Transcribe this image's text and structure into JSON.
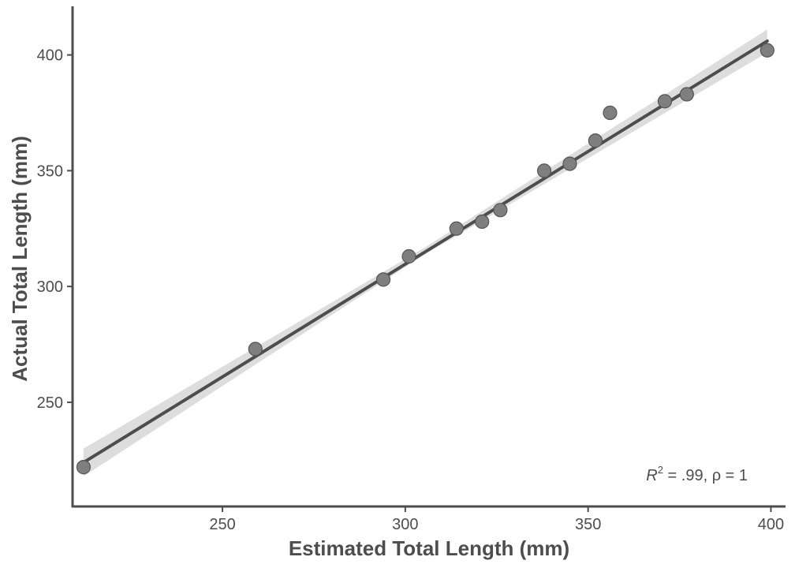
{
  "chart_data": {
    "type": "scatter",
    "xlabel": "Estimated Total Length (mm)",
    "ylabel": "Actual Total Length (mm)",
    "xlim": [
      209,
      404
    ],
    "ylim": [
      205,
      421
    ],
    "x_ticks": [
      250,
      300,
      350,
      400
    ],
    "y_ticks": [
      250,
      300,
      350,
      400
    ],
    "grid": false,
    "points": [
      {
        "x": 212,
        "y": 222
      },
      {
        "x": 259,
        "y": 273
      },
      {
        "x": 294,
        "y": 303
      },
      {
        "x": 301,
        "y": 313
      },
      {
        "x": 314,
        "y": 325
      },
      {
        "x": 321,
        "y": 328
      },
      {
        "x": 326,
        "y": 333
      },
      {
        "x": 338,
        "y": 350
      },
      {
        "x": 345,
        "y": 353
      },
      {
        "x": 352,
        "y": 363
      },
      {
        "x": 356,
        "y": 375
      },
      {
        "x": 371,
        "y": 380
      },
      {
        "x": 377,
        "y": 383
      },
      {
        "x": 399,
        "y": 402
      }
    ],
    "fit_line": {
      "x": [
        212,
        399
      ],
      "y": [
        224,
        406
      ]
    },
    "confidence_band": {
      "x": [
        212,
        305,
        399
      ],
      "lower": [
        218,
        313.5,
        401
      ],
      "upper": [
        230,
        316.5,
        411
      ]
    },
    "annotation": {
      "r_label": "R",
      "r_sup": "2",
      "rest": " = .99, ρ = 1"
    },
    "colors": {
      "point_fill": "#7f7f7f",
      "point_stroke": "#555555",
      "line": "#4d4d4d",
      "band": "#d9d9d9",
      "axis": "#4d4d4d"
    }
  }
}
